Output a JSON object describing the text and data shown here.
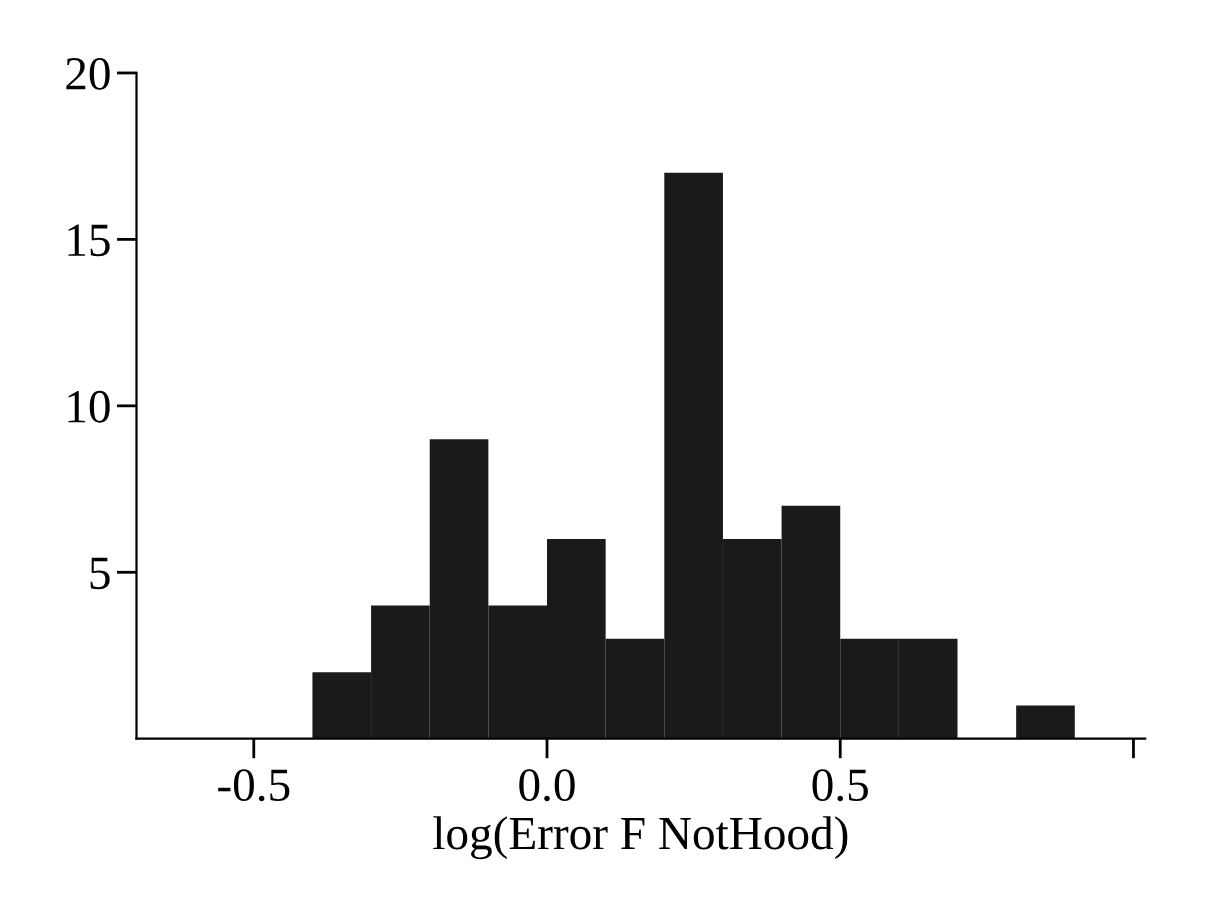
{
  "chart_data": {
    "type": "histogram",
    "xlabel": "log(Error F NotHood)",
    "bins": [
      -0.4,
      -0.3,
      -0.2,
      -0.1,
      0.0,
      0.1,
      0.2,
      0.3,
      0.4,
      0.5,
      0.6,
      0.7,
      0.8,
      0.9
    ],
    "values": [
      2,
      4,
      9,
      4,
      6,
      3,
      17,
      6,
      7,
      3,
      3,
      0,
      1
    ],
    "color": "#1a1a1a",
    "xlim": [
      -0.7,
      1.02
    ],
    "xticks": [
      -0.5,
      {
        "value": 0.0,
        "label": "0.0"
      },
      0.5,
      {
        "value": 1.0,
        "label": null
      }
    ],
    "ylim": [
      0,
      20
    ],
    "yticks": [
      5,
      10,
      15,
      20
    ],
    "grid": false
  }
}
